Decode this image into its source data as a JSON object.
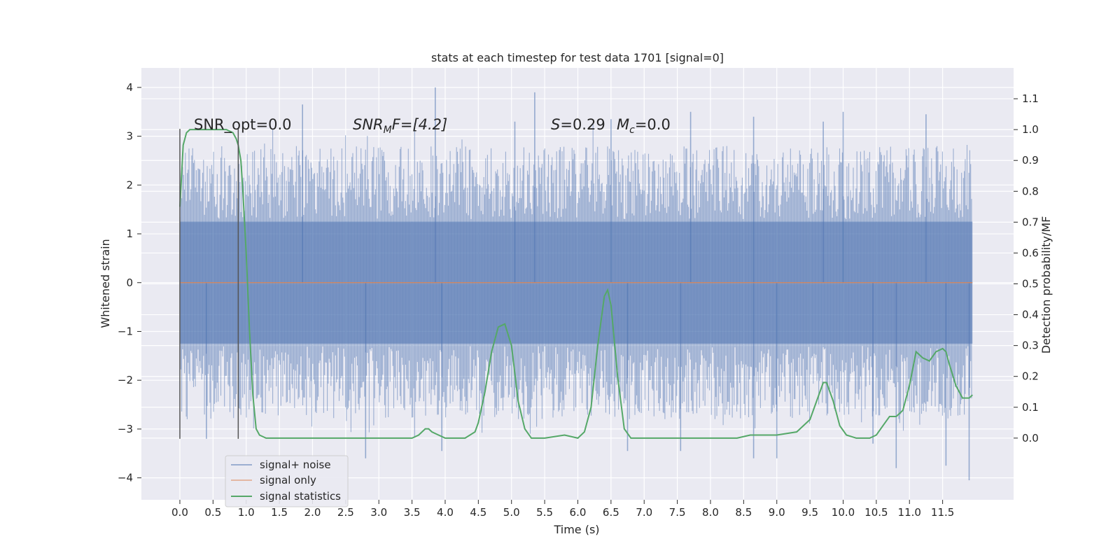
{
  "chart_data": {
    "type": "line",
    "title": "stats at each timestep for test data 1701 [signal=0]",
    "xlabel": "Time (s)",
    "ylabel_left": "Whitened strain",
    "ylabel_right": "Detection probability/MF",
    "xlim": [
      -0.58,
      12.57
    ],
    "ylim_left": [
      -4.45,
      4.4
    ],
    "ylim_right": [
      -0.2,
      1.2
    ],
    "x_ticks": [
      0.0,
      0.5,
      1.0,
      1.5,
      2.0,
      2.5,
      3.0,
      3.5,
      4.0,
      4.5,
      5.0,
      5.5,
      6.0,
      6.5,
      7.0,
      7.5,
      8.0,
      8.5,
      9.0,
      9.5,
      10.0,
      10.5,
      11.0,
      11.5
    ],
    "x_tick_labels": [
      "0.0",
      "0.5",
      "1.0",
      "1.5",
      "2.0",
      "2.5",
      "3.0",
      "3.5",
      "4.0",
      "4.5",
      "5.0",
      "5.5",
      "6.0",
      "6.5",
      "7.0",
      "7.5",
      "8.0",
      "8.5",
      "9.0",
      "9.5",
      "10.0",
      "10.5",
      "11.0",
      "11.5"
    ],
    "y_ticks_left": [
      4,
      3,
      2,
      1,
      0,
      -1,
      -2,
      -3,
      -4
    ],
    "y_tick_labels_left": [
      "4",
      "3",
      "2",
      "1",
      "0",
      "−1",
      "−2",
      "−3",
      "−4"
    ],
    "y_ticks_right": [
      1.1,
      1.0,
      0.9,
      0.8,
      0.7,
      0.6,
      0.5,
      0.4,
      0.3,
      0.2,
      0.1,
      0.0
    ],
    "y_tick_labels_right": [
      "1.1",
      "1.0",
      "0.9",
      "0.8",
      "0.7",
      "0.6",
      "0.5",
      "0.4",
      "0.3",
      "0.2",
      "0.1",
      "0.0"
    ],
    "grid": true,
    "legend_position": "lower-left",
    "annotations": {
      "snr_opt": "SNR_opt=0.0",
      "snr_mf_sym": "SNR",
      "snr_mf_sub": "M",
      "snr_mf_rest": "F=[4.2]",
      "s_sym": "S",
      "s_rest": "=0.29",
      "mc_sym": "M",
      "mc_sub": "c",
      "mc_rest": "=0.0"
    },
    "markers": [
      0.0,
      0.88
    ],
    "marker_range": [
      -3.2,
      3.15
    ],
    "series": [
      {
        "name": "signal+ noise",
        "axis": "left",
        "color": "#4c72b0",
        "kind": "noise",
        "x_range": [
          0.0,
          11.95
        ],
        "envelope": [
          2.5,
          -2.5
        ],
        "extreme_spikes": [
          [
            3.85,
            4.0
          ],
          [
            5.35,
            3.9
          ],
          [
            1.85,
            3.65
          ],
          [
            7.7,
            3.5
          ],
          [
            10.0,
            3.5
          ],
          [
            8.65,
            3.4
          ],
          [
            11.25,
            3.45
          ],
          [
            6.5,
            3.35
          ],
          [
            5.05,
            3.3
          ],
          [
            9.7,
            3.3
          ],
          [
            2.8,
            -3.6
          ],
          [
            11.9,
            -4.05
          ],
          [
            11.55,
            -3.75
          ],
          [
            10.8,
            -3.8
          ],
          [
            3.95,
            -3.45
          ],
          [
            7.55,
            -3.45
          ],
          [
            9.0,
            -3.6
          ],
          [
            8.65,
            -3.6
          ],
          [
            6.75,
            -3.45
          ],
          [
            0.4,
            -3.2
          ],
          [
            10.45,
            -3.3
          ]
        ]
      },
      {
        "name": "signal only",
        "axis": "left",
        "color": "#dd8452",
        "x": [
          0.0,
          11.95
        ],
        "y": [
          0.0,
          0.0
        ]
      },
      {
        "name": "signal statistics",
        "axis": "right",
        "color": "#55a868",
        "x": [
          0.0,
          0.05,
          0.1,
          0.15,
          0.2,
          0.3,
          0.5,
          0.7,
          0.8,
          0.85,
          0.88,
          0.92,
          0.95,
          1.0,
          1.05,
          1.1,
          1.15,
          1.2,
          1.3,
          1.5,
          1.8,
          2.0,
          2.5,
          3.0,
          3.5,
          3.6,
          3.7,
          3.75,
          3.8,
          3.9,
          4.0,
          4.3,
          4.45,
          4.5,
          4.6,
          4.7,
          4.8,
          4.9,
          5.0,
          5.1,
          5.2,
          5.3,
          5.5,
          5.8,
          6.0,
          6.1,
          6.2,
          6.3,
          6.4,
          6.45,
          6.5,
          6.6,
          6.7,
          6.8,
          7.0,
          7.5,
          8.0,
          8.4,
          8.6,
          9.0,
          9.3,
          9.5,
          9.6,
          9.7,
          9.75,
          9.85,
          9.95,
          10.05,
          10.2,
          10.4,
          10.5,
          10.6,
          10.7,
          10.8,
          10.9,
          11.0,
          11.1,
          11.2,
          11.3,
          11.4,
          11.5,
          11.55,
          11.6,
          11.7,
          11.8,
          11.9,
          11.95
        ],
        "y": [
          0.75,
          0.95,
          0.99,
          1.0,
          1.0,
          1.0,
          1.0,
          1.0,
          0.99,
          0.97,
          0.95,
          0.9,
          0.8,
          0.6,
          0.35,
          0.14,
          0.03,
          0.01,
          0.0,
          0.0,
          0.0,
          0.0,
          0.0,
          0.0,
          0.0,
          0.01,
          0.03,
          0.03,
          0.02,
          0.01,
          0.0,
          0.0,
          0.02,
          0.05,
          0.15,
          0.28,
          0.36,
          0.37,
          0.3,
          0.12,
          0.03,
          0.0,
          0.0,
          0.01,
          0.0,
          0.02,
          0.1,
          0.3,
          0.46,
          0.48,
          0.43,
          0.2,
          0.03,
          0.0,
          0.0,
          0.0,
          0.0,
          0.0,
          0.01,
          0.01,
          0.02,
          0.06,
          0.12,
          0.18,
          0.18,
          0.12,
          0.04,
          0.01,
          0.0,
          0.0,
          0.01,
          0.04,
          0.07,
          0.07,
          0.09,
          0.17,
          0.28,
          0.26,
          0.25,
          0.28,
          0.29,
          0.28,
          0.24,
          0.17,
          0.13,
          0.13,
          0.14
        ]
      }
    ]
  }
}
